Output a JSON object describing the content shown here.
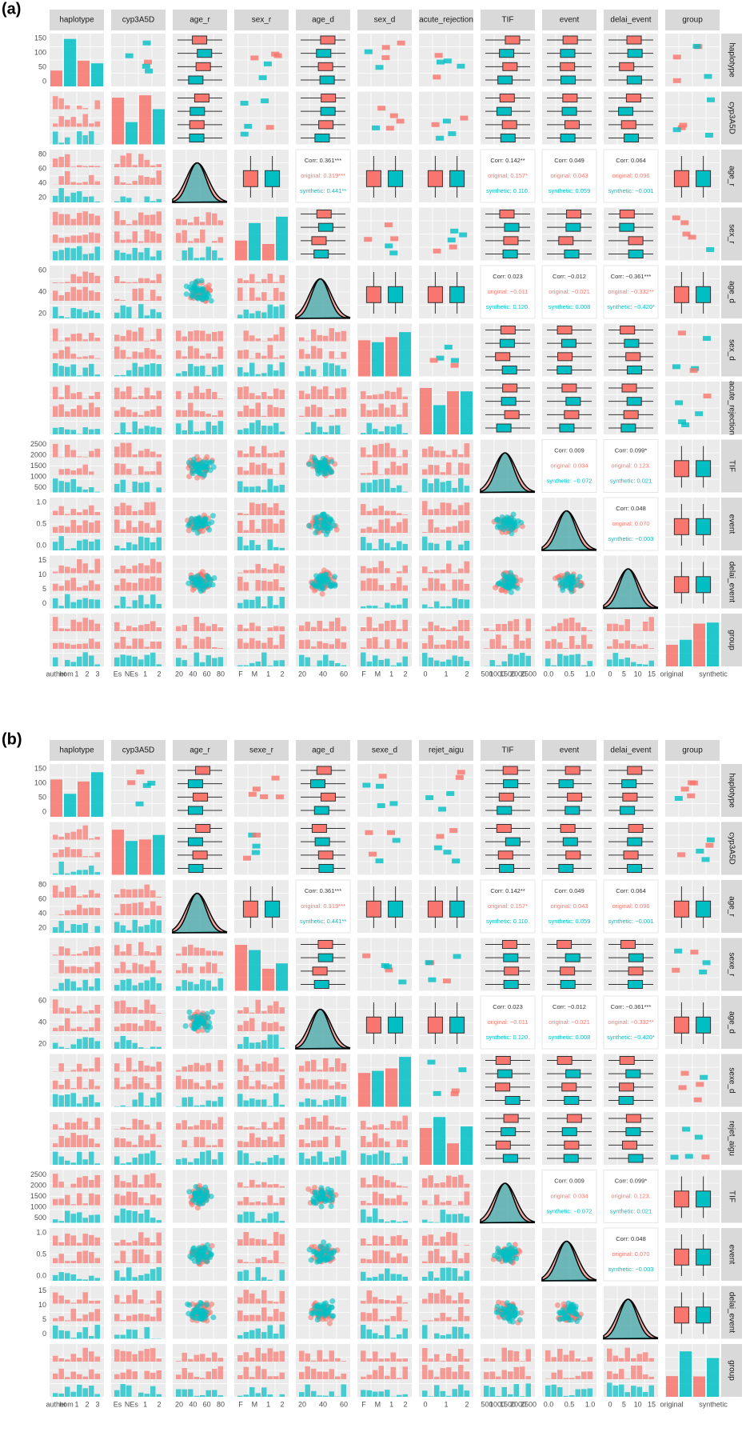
{
  "figures": [
    {
      "label": "(a)",
      "columns": [
        "haplotype",
        "cyp3A5D",
        "age_r",
        "sex_r",
        "age_d",
        "sex_d",
        "acute_rejection",
        "TIF",
        "event",
        "delai_event",
        "group"
      ],
      "rows": [
        "haplotype",
        "cyp3A5D",
        "age_r",
        "sex_r",
        "age_d",
        "sex_d",
        "acute_rejection",
        "TIF",
        "event",
        "delai_event",
        "group"
      ],
      "y_ticks": [
        [
          "0",
          "50",
          "100",
          "150"
        ],
        [],
        [
          "20",
          "40",
          "60",
          "80"
        ],
        [],
        [
          "20",
          "40",
          "60"
        ],
        [],
        [],
        [
          "500",
          "1000",
          "1500",
          "2000",
          "2500"
        ],
        [
          "0.0",
          "0.5",
          "1.0"
        ],
        [
          "0",
          "5",
          "10",
          "15"
        ],
        []
      ],
      "x_ticks": [
        [
          "authet",
          "hom",
          "1",
          "2",
          "3"
        ],
        [
          "Es",
          "NEs",
          "1",
          "2"
        ],
        [
          "20",
          "40",
          "60",
          "80"
        ],
        [
          "F",
          "M",
          "1",
          "2"
        ],
        [
          "20",
          "40",
          "60"
        ],
        [
          "F",
          "M",
          "1",
          "2"
        ],
        [
          "0",
          "1",
          "2"
        ],
        [
          "500",
          "1000",
          "1500",
          "2000",
          "2500"
        ],
        [
          "0.0",
          "0.5",
          "1.0"
        ],
        [
          "0",
          "5",
          "10",
          "15"
        ],
        [
          "original",
          "synthetic"
        ]
      ],
      "correlations": [
        {
          "pair": [
            "age_r",
            "age_d"
          ],
          "lines": [
            "Corr: 0.361***",
            "original: 0.319***",
            "synthetic: 0.441**"
          ]
        },
        {
          "pair": [
            "age_r",
            "TIF"
          ],
          "lines": [
            "Corr: 0.142**",
            "original: 0.157*",
            "synthetic: 0.110."
          ]
        },
        {
          "pair": [
            "age_r",
            "event"
          ],
          "lines": [
            "Corr: 0.049",
            "original: 0.043",
            "synthetic: 0.059"
          ]
        },
        {
          "pair": [
            "age_r",
            "delai_event"
          ],
          "lines": [
            "Corr: 0.064",
            "original: 0.096",
            "synthetic: −0.001"
          ]
        },
        {
          "pair": [
            "age_d",
            "TIF"
          ],
          "lines": [
            "Corr: 0.023",
            "original: −0.011",
            "synthetic: 0.120."
          ]
        },
        {
          "pair": [
            "age_d",
            "event"
          ],
          "lines": [
            "Corr: −0.012",
            "original: −0.021",
            "synthetic: 0.008"
          ]
        },
        {
          "pair": [
            "age_d",
            "delai_event"
          ],
          "lines": [
            "Corr: −0.361***",
            "original: −0.332**",
            "synthetic: −0.420*"
          ]
        },
        {
          "pair": [
            "TIF",
            "event"
          ],
          "lines": [
            "Corr: 0.009",
            "original: 0.034",
            "synthetic: −0.072"
          ]
        },
        {
          "pair": [
            "TIF",
            "delai_event"
          ],
          "lines": [
            "Corr: 0.099*",
            "original: 0.123.",
            "synthetic: 0.021"
          ]
        },
        {
          "pair": [
            "event",
            "delai_event"
          ],
          "lines": [
            "Corr: 0.048",
            "original: 0.070",
            "synthetic: −0.003"
          ]
        }
      ]
    },
    {
      "label": "(b)",
      "columns": [
        "haplotype",
        "cyp3A5D",
        "age_r",
        "sexe_r",
        "age_d",
        "sexe_d",
        "rejet_aigu",
        "TIF",
        "event",
        "delai_event",
        "group"
      ],
      "rows": [
        "haplotype",
        "cyp3A5D",
        "age_r",
        "sexe_r",
        "age_d",
        "sexe_d",
        "rejet_aigu",
        "TIF",
        "event",
        "delai_event",
        "group"
      ],
      "y_ticks": [
        [
          "0",
          "50",
          "100",
          "150"
        ],
        [],
        [
          "20",
          "40",
          "60",
          "80"
        ],
        [],
        [
          "20",
          "40",
          "60"
        ],
        [],
        [],
        [
          "500",
          "1000",
          "1500",
          "2000",
          "2500"
        ],
        [
          "0.0",
          "0.5",
          "1.0"
        ],
        [
          "0",
          "5",
          "10",
          "15"
        ],
        []
      ],
      "x_ticks": [
        [
          "authet",
          "hom",
          "1",
          "2",
          "3"
        ],
        [
          "Es",
          "NEs",
          "1",
          "2"
        ],
        [
          "20",
          "40",
          "60",
          "80"
        ],
        [
          "F",
          "M",
          "1",
          "2"
        ],
        [
          "20",
          "40",
          "60"
        ],
        [
          "F",
          "M",
          "1",
          "2"
        ],
        [
          "0",
          "1",
          "2"
        ],
        [
          "500",
          "1000",
          "1500",
          "2000",
          "2500"
        ],
        [
          "0.0",
          "0.5",
          "1.0"
        ],
        [
          "0",
          "5",
          "10",
          "15"
        ],
        [
          "original",
          "synthetic"
        ]
      ],
      "correlations": [
        {
          "pair": [
            "age_r",
            "age_d"
          ],
          "lines": [
            "Corr: 0.361***",
            "original: 0.319***",
            "synthetic: 0.441**"
          ]
        },
        {
          "pair": [
            "age_r",
            "TIF"
          ],
          "lines": [
            "Corr: 0.142**",
            "original: 0.157*",
            "synthetic: 0.110."
          ]
        },
        {
          "pair": [
            "age_r",
            "event"
          ],
          "lines": [
            "Corr: 0.049",
            "original: 0.043",
            "synthetic: 0.059"
          ]
        },
        {
          "pair": [
            "age_r",
            "delai_event"
          ],
          "lines": [
            "Corr: 0.064",
            "original: 0.096",
            "synthetic: −0.001"
          ]
        },
        {
          "pair": [
            "age_d",
            "TIF"
          ],
          "lines": [
            "Corr: 0.023",
            "original: −0.011",
            "synthetic: 0.120."
          ]
        },
        {
          "pair": [
            "age_d",
            "event"
          ],
          "lines": [
            "Corr: −0.012",
            "original: −0.021",
            "synthetic: 0.008"
          ]
        },
        {
          "pair": [
            "age_d",
            "delai_event"
          ],
          "lines": [
            "Corr: −0.361***",
            "original: −0.332**",
            "synthetic: −0.420*"
          ]
        },
        {
          "pair": [
            "TIF",
            "event"
          ],
          "lines": [
            "Corr: 0.009",
            "original: 0.034",
            "synthetic: −0.072"
          ]
        },
        {
          "pair": [
            "TIF",
            "delai_event"
          ],
          "lines": [
            "Corr: 0.099*",
            "original: 0.123.",
            "synthetic: 0.021"
          ]
        },
        {
          "pair": [
            "event",
            "delai_event"
          ],
          "lines": [
            "Corr: 0.048",
            "original: 0.070",
            "synthetic: −0.003"
          ]
        }
      ]
    }
  ]
}
